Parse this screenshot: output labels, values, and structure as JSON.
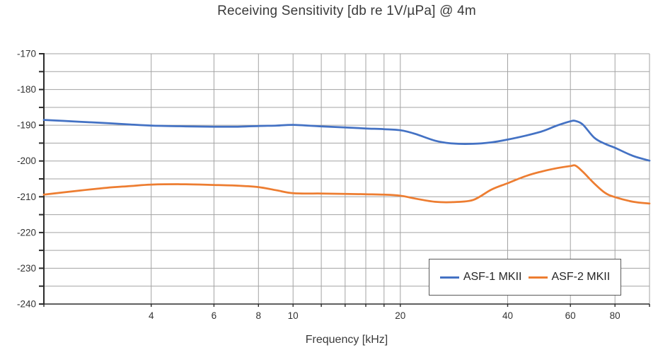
{
  "title": "Receiving Sensitivity [db re 1V/µPa] @ 4m",
  "chart_data": {
    "type": "line",
    "title": "Receiving Sensitivity [db re 1V/µPa] @ 4m",
    "xlabel": "Frequency [kHz]",
    "ylabel": "",
    "x_scale": "log",
    "xlim": [
      2,
      100
    ],
    "ylim": [
      -240,
      -170
    ],
    "grid": true,
    "legend_position": "inside bottom-right",
    "x_tick_labels": [
      "4",
      "6",
      "8",
      "10",
      "20",
      "40",
      "60",
      "80"
    ],
    "x_tick_values": [
      4,
      6,
      8,
      10,
      20,
      40,
      60,
      80
    ],
    "x_gridlines": [
      2,
      4,
      6,
      8,
      10,
      12,
      14,
      16,
      18,
      20,
      40,
      60,
      80,
      100
    ],
    "y_tick_labels": [
      "-170",
      "-180",
      "-190",
      "-200",
      "-210",
      "-220",
      "-230",
      "-240"
    ],
    "y_tick_values": [
      -170,
      -180,
      -190,
      -200,
      -210,
      -220,
      -230,
      -240
    ],
    "y_gridline_step": 5,
    "x": [
      2,
      2.5,
      3,
      3.5,
      4,
      5,
      6,
      7,
      8,
      9,
      10,
      12,
      14,
      16,
      18,
      20,
      22,
      25,
      28,
      32,
      36,
      40,
      45,
      50,
      55,
      60,
      62,
      65,
      70,
      75,
      80,
      90,
      100
    ],
    "series": [
      {
        "name": "ASF-1 MKII",
        "color": "#4472C4",
        "values": [
          -188.5,
          -189.0,
          -189.4,
          -189.8,
          -190.1,
          -190.3,
          -190.4,
          -190.4,
          -190.2,
          -190.1,
          -189.9,
          -190.3,
          -190.6,
          -190.9,
          -191.1,
          -191.4,
          -192.4,
          -194.3,
          -195.1,
          -195.2,
          -194.8,
          -194.0,
          -192.9,
          -191.7,
          -190.1,
          -188.9,
          -188.8,
          -189.8,
          -193.5,
          -195.2,
          -196.3,
          -198.6,
          -199.9
        ]
      },
      {
        "name": "ASF-2 MKII",
        "color": "#ED7D31",
        "values": [
          -209.4,
          -208.3,
          -207.5,
          -207.0,
          -206.6,
          -206.5,
          -206.7,
          -206.9,
          -207.3,
          -208.2,
          -209.0,
          -209.1,
          -209.2,
          -209.3,
          -209.4,
          -209.7,
          -210.5,
          -211.4,
          -211.5,
          -210.9,
          -208.0,
          -206.2,
          -204.2,
          -202.9,
          -202.0,
          -201.4,
          -201.3,
          -203.0,
          -206.3,
          -208.9,
          -210.1,
          -211.4,
          -211.9
        ]
      }
    ]
  },
  "colors": {
    "background": "#FFFFFF",
    "gridline": "#A3A3A3",
    "axis": "#2b2b2b",
    "tick_text": "#333333",
    "title_text": "#3B3B3B",
    "legend_border": "#595959"
  }
}
